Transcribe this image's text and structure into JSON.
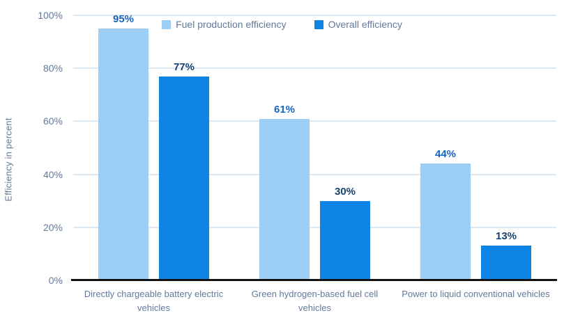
{
  "chart_data": {
    "type": "bar",
    "title": "",
    "ylabel": "Efficiency in percent",
    "xlabel": "",
    "ylim": [
      0,
      100
    ],
    "yticks": [
      0,
      20,
      40,
      60,
      80,
      100
    ],
    "ytick_suffix": "%",
    "grid": true,
    "legend_position": "top-center",
    "value_suffix": "%",
    "categories": [
      "Directly chargeable battery electric vehicles",
      "Green hydrogen-based fuel cell vehicles",
      "Power to liquid conventional vehicles"
    ],
    "series": [
      {
        "name": "Fuel production efficiency",
        "values": [
          95,
          61,
          44
        ],
        "color": "#9dcef5",
        "label_color": "#1565c0"
      },
      {
        "name": "Overall efficiency",
        "values": [
          77,
          30,
          13
        ],
        "color": "#0e84e4",
        "label_color": "#17416f"
      }
    ]
  },
  "colors": {
    "background": "#ffffff",
    "gridline": "#dce9f5",
    "axis_line": "#111111",
    "axis_text": "#63799b"
  }
}
